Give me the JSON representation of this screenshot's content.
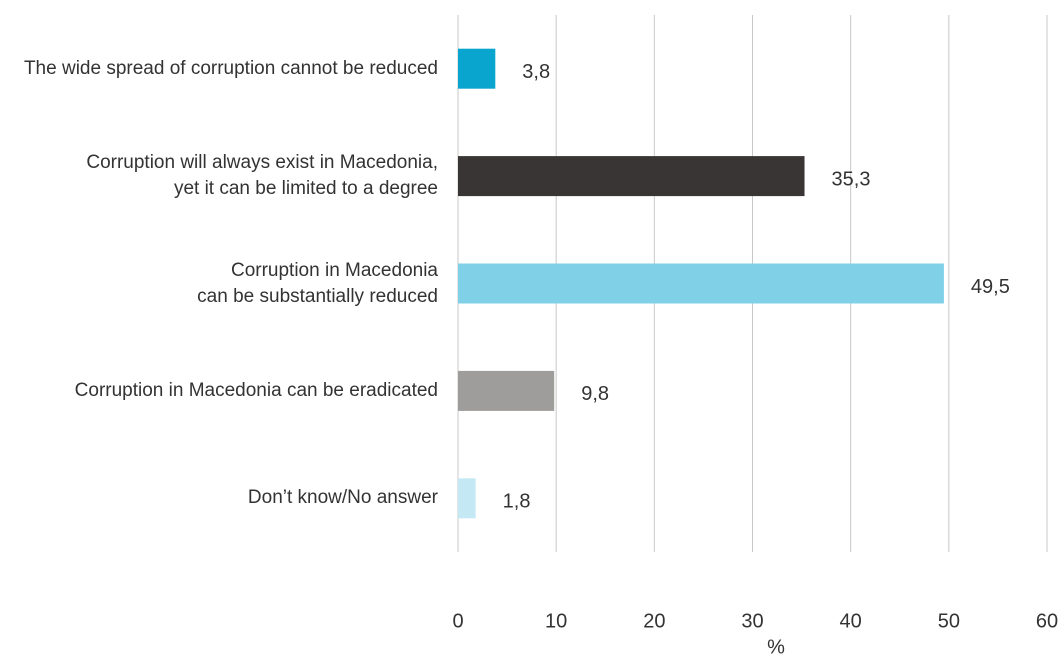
{
  "chart_data": {
    "type": "bar",
    "orientation": "horizontal",
    "categories": [
      "The wide spread of corruption cannot be reduced",
      "Corruption will always exist in Macedonia, yet it can be limited to a degree",
      "Corruption in Macedonia can be substantially reduced",
      "Corruption in Macedonia can be eradicated",
      "Don’t know/No answer"
    ],
    "values": [
      3.8,
      35.3,
      49.5,
      9.8,
      1.8
    ],
    "value_labels": [
      "3,8",
      "35,3",
      "49,5",
      "9,8",
      "1,8"
    ],
    "colors": [
      "#0aa5cf",
      "#3a3535",
      "#80d1e7",
      "#9e9d9b",
      "#c5e9f4"
    ],
    "xlabel": "%",
    "xlim": [
      0,
      60
    ],
    "xticks": [
      0,
      10,
      20,
      30,
      40,
      50,
      60
    ],
    "grid": true
  }
}
